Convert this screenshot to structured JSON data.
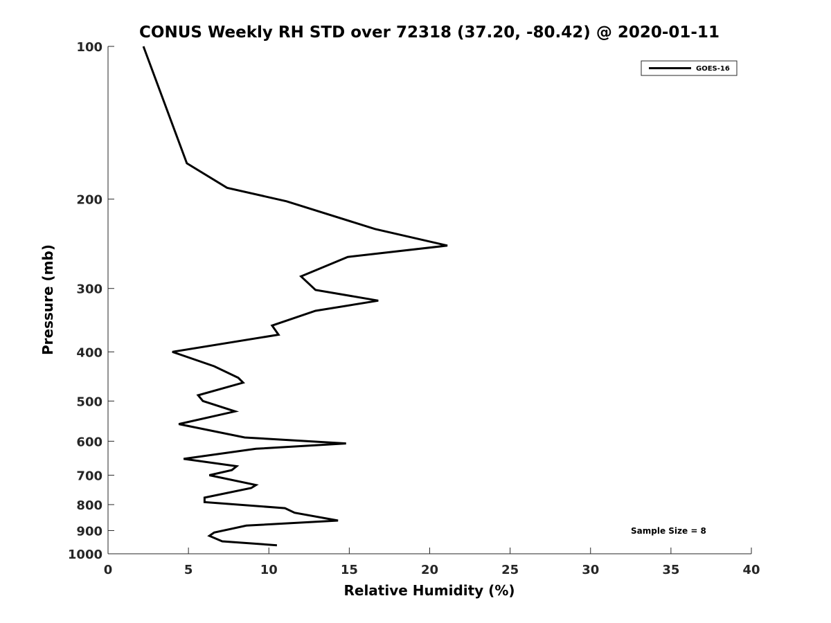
{
  "chart_data": {
    "type": "line",
    "title": "CONUS Weekly RH STD over 72318 (37.20, -80.42) @ 2020-01-11",
    "xlabel": "Relative Humidity (%)",
    "ylabel": "Pressure (mb)",
    "xlim": [
      0,
      40
    ],
    "ylim": [
      100,
      1000
    ],
    "y_scale": "log",
    "y_reversed": true,
    "xticks": [
      0,
      5,
      10,
      15,
      20,
      25,
      30,
      35,
      40
    ],
    "yticks": [
      100,
      200,
      300,
      400,
      500,
      600,
      700,
      800,
      900,
      1000
    ],
    "grid": false,
    "legend_position": "top-right",
    "annotation": "Sample Size = 8",
    "line_color": "#000000",
    "series": [
      {
        "name": "GOES-16",
        "x": [
          2.2,
          4.9,
          7.4,
          11.1,
          16.6,
          21.1,
          14.9,
          12.0,
          12.9,
          16.8,
          12.9,
          10.2,
          10.6,
          4.0,
          6.6,
          8.1,
          8.4,
          5.6,
          5.9,
          7.9,
          4.4,
          8.5,
          14.8,
          9.2,
          4.7,
          8.0,
          7.7,
          6.3,
          9.2,
          8.9,
          6.0,
          6.0,
          11.0,
          11.6,
          14.3,
          8.6,
          6.6,
          6.3,
          7.1,
          10.5
        ],
        "y": [
          100,
          170,
          190,
          202,
          229,
          247,
          260,
          284,
          302,
          317,
          332,
          355,
          370,
          400,
          427,
          450,
          460,
          487,
          500,
          524,
          555,
          590,
          606,
          621,
          650,
          672,
          684,
          700,
          732,
          742,
          775,
          791,
          813,
          830,
          860,
          880,
          908,
          922,
          945,
          962
        ]
      }
    ]
  }
}
